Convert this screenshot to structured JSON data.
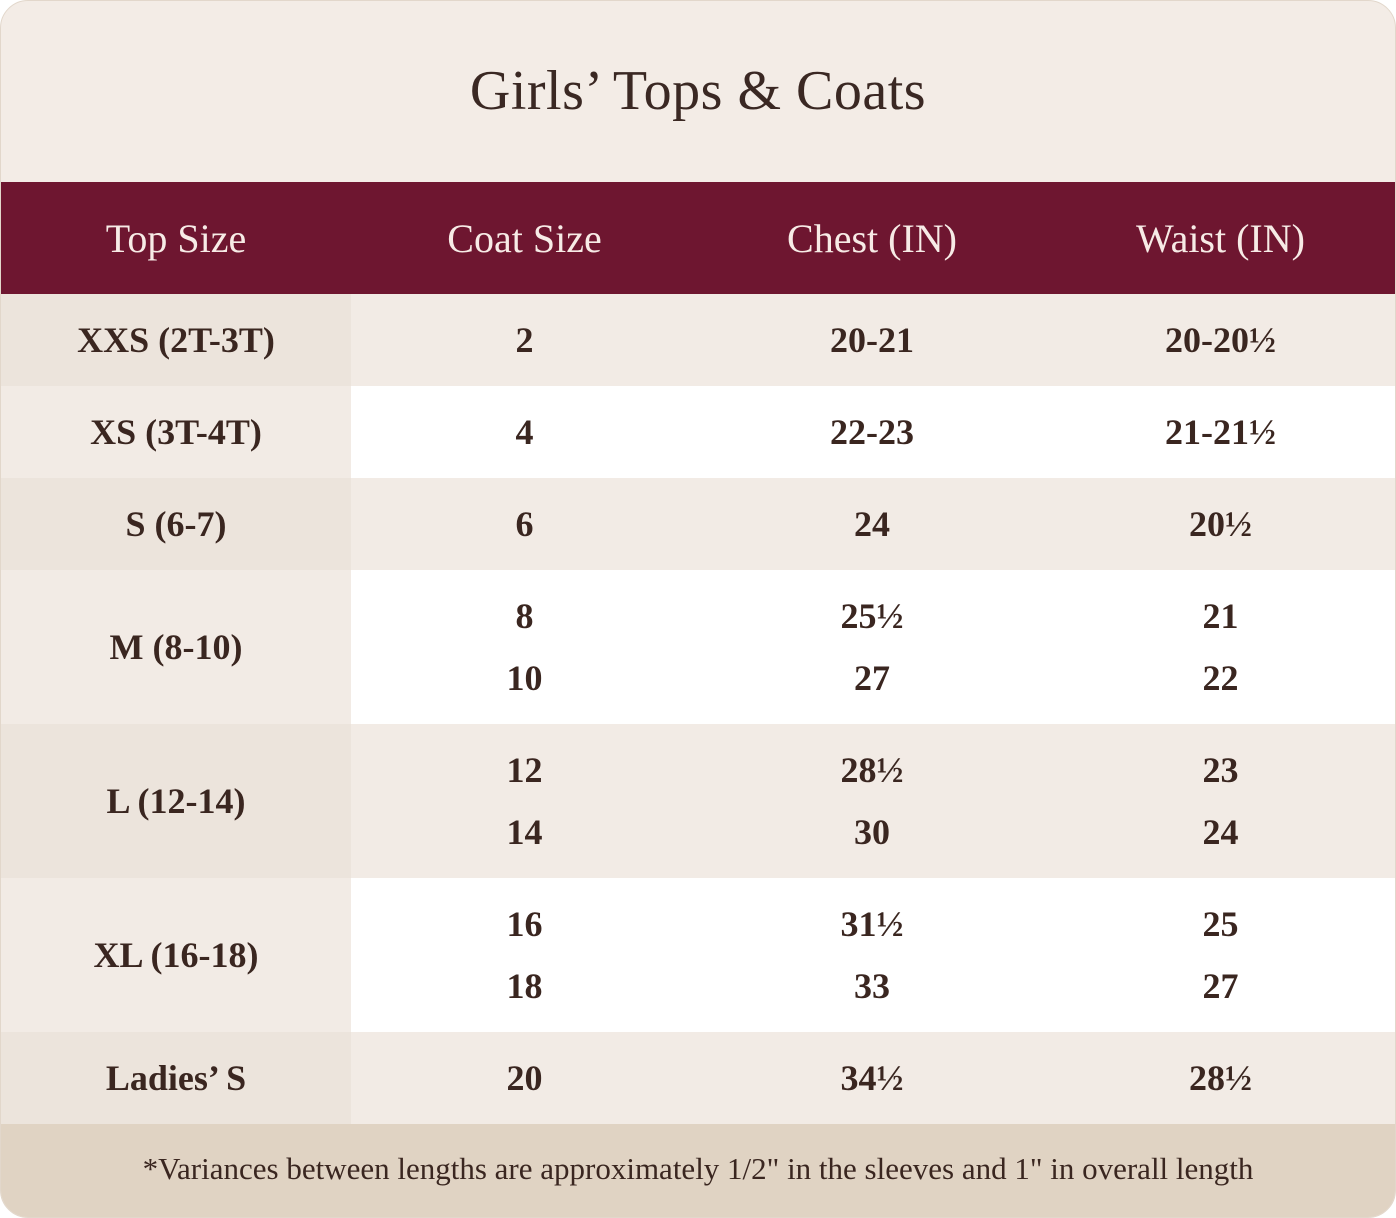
{
  "title": "Girls’ Tops & Coats",
  "colors": {
    "header_bg": "#6e1630",
    "header_text": "#f7ebe6",
    "page_bg": "#f3ece6",
    "text": "#3a2620",
    "footer_bg": "#e0d3c3"
  },
  "table": {
    "headers": [
      "Top Size",
      "Coat Size",
      "Chest (IN)",
      "Waist (IN)"
    ],
    "rows": [
      {
        "top_size": "XXS (2T-3T)",
        "coat_sizes": [
          "2"
        ],
        "chest": [
          "20-21"
        ],
        "waist": [
          "20-20½"
        ]
      },
      {
        "top_size": "XS (3T-4T)",
        "coat_sizes": [
          "4"
        ],
        "chest": [
          "22-23"
        ],
        "waist": [
          "21-21½"
        ]
      },
      {
        "top_size": "S (6-7)",
        "coat_sizes": [
          "6"
        ],
        "chest": [
          "24"
        ],
        "waist": [
          "20½"
        ]
      },
      {
        "top_size": "M (8-10)",
        "coat_sizes": [
          "8",
          "10"
        ],
        "chest": [
          "25½",
          "27"
        ],
        "waist": [
          "21",
          "22"
        ]
      },
      {
        "top_size": "L (12-14)",
        "coat_sizes": [
          "12",
          "14"
        ],
        "chest": [
          "28½",
          "30"
        ],
        "waist": [
          "23",
          "24"
        ]
      },
      {
        "top_size": "XL (16-18)",
        "coat_sizes": [
          "16",
          "18"
        ],
        "chest": [
          "31½",
          "33"
        ],
        "waist": [
          "25",
          "27"
        ]
      },
      {
        "top_size": "Ladies’ S",
        "coat_sizes": [
          "20"
        ],
        "chest": [
          "34½"
        ],
        "waist": [
          "28½"
        ]
      }
    ]
  },
  "footnote": "*Variances between lengths are approximately 1/2\" in the sleeves and 1\" in overall length"
}
